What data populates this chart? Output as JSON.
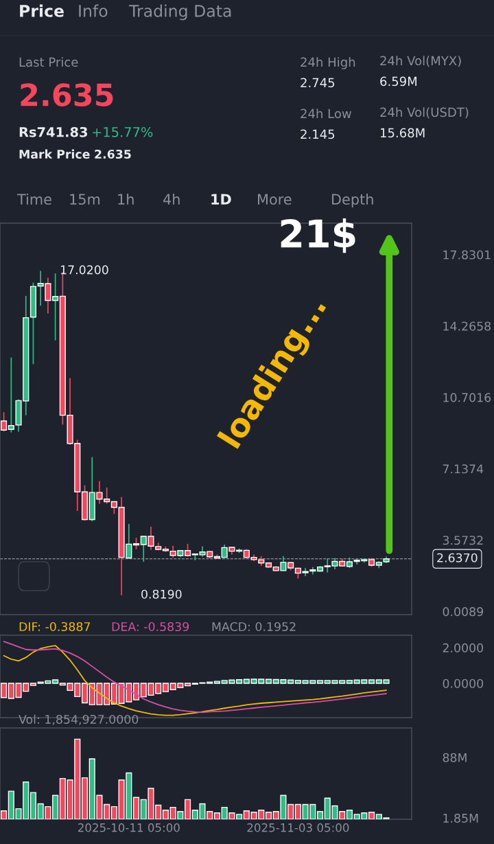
{
  "chart_data": [
    {
      "type": "other",
      "annotations": [
        "Price",
        "Info",
        "Trading Data",
        "Last Price",
        "2.635",
        "Rs741.83",
        "+15.77%",
        "Mark Price",
        "2.635",
        "24h High",
        "2.745",
        "24h Low",
        "2.145",
        "24h Vol(MYX)",
        "6.59M",
        "24h Vol(USDT)",
        "15.68M",
        "Time",
        "15m",
        "1h",
        "4h",
        "1D",
        "More",
        "Depth"
      ]
    },
    {
      "type": "candlestick",
      "categories": [
        null,
        null,
        null,
        null,
        null,
        null,
        null,
        null,
        null,
        null,
        null,
        null,
        null,
        null,
        null,
        null,
        null,
        "2025-10-11 05:00",
        null,
        null,
        null,
        null,
        null,
        null,
        null,
        null,
        null,
        null,
        null,
        null,
        null,
        null,
        null,
        null,
        null,
        null,
        null,
        null,
        null,
        null,
        "2025-11-03 05:00",
        null,
        null,
        null,
        null,
        null,
        null,
        null,
        null,
        null,
        null,
        null,
        null
      ],
      "ohlc": [
        [
          9.52,
          9.96,
          8.99,
          9.07
        ],
        [
          9.1,
          12.69,
          8.95,
          9.29
        ],
        [
          9.32,
          10.6,
          8.99,
          10.54
        ],
        [
          10.52,
          15.77,
          9.81,
          14.68
        ],
        [
          14.71,
          16.43,
          12.36,
          16.24
        ],
        [
          16.26,
          17.02,
          15.28,
          16.39
        ],
        [
          16.38,
          16.67,
          14.89,
          15.54
        ],
        [
          15.54,
          16.89,
          13.55,
          15.74
        ],
        [
          15.75,
          16.95,
          9.34,
          9.81
        ],
        [
          9.81,
          11.67,
          8.33,
          8.4
        ],
        [
          8.4,
          8.58,
          5.03,
          5.98
        ],
        [
          5.98,
          6.31,
          4.54,
          4.6
        ],
        [
          4.6,
          7.72,
          4.51,
          5.95
        ],
        [
          5.95,
          6.52,
          5.39,
          5.62
        ],
        [
          5.62,
          6.2,
          5.39,
          5.49
        ],
        [
          5.49,
          5.5,
          4.88,
          5.21
        ],
        [
          5.21,
          5.72,
          0.819,
          2.71
        ],
        [
          2.68,
          4.38,
          2.64,
          3.37
        ],
        [
          3.39,
          3.69,
          3.12,
          3.33
        ],
        [
          3.35,
          3.78,
          2.49,
          3.76
        ],
        [
          3.76,
          4.24,
          3.09,
          3.27
        ],
        [
          3.25,
          3.44,
          3.06,
          3.11
        ],
        [
          3.12,
          3.25,
          2.98,
          3.05
        ],
        [
          3.02,
          3.29,
          2.7,
          2.81
        ],
        [
          2.8,
          3.06,
          2.72,
          3.05
        ],
        [
          3.05,
          3.38,
          2.75,
          2.8
        ],
        [
          2.84,
          2.88,
          2.57,
          2.88
        ],
        [
          2.84,
          3.26,
          2.74,
          2.98
        ],
        [
          3.0,
          3.03,
          2.66,
          2.74
        ],
        [
          2.75,
          2.85,
          2.63,
          2.68
        ],
        [
          2.71,
          3.35,
          2.71,
          3.2
        ],
        [
          3.21,
          3.24,
          2.85,
          3.02
        ],
        [
          3.02,
          3.15,
          2.93,
          3.07
        ],
        [
          3.06,
          3.12,
          2.64,
          2.71
        ],
        [
          2.71,
          2.85,
          2.52,
          2.6
        ],
        [
          2.59,
          2.77,
          2.29,
          2.43
        ],
        [
          2.43,
          2.46,
          2.18,
          2.23
        ],
        [
          2.23,
          2.27,
          2.01,
          2.05
        ],
        [
          2.05,
          2.77,
          2.03,
          2.46
        ],
        [
          2.45,
          2.47,
          2.06,
          2.18
        ],
        [
          2.17,
          2.2,
          1.65,
          1.92
        ],
        [
          1.94,
          2.18,
          1.77,
          2.0
        ],
        [
          2.03,
          2.23,
          1.86,
          2.09
        ],
        [
          2.03,
          2.28,
          1.99,
          2.23
        ],
        [
          2.24,
          2.66,
          1.95,
          2.29
        ],
        [
          2.28,
          2.68,
          2.11,
          2.51
        ],
        [
          2.51,
          2.64,
          2.28,
          2.28
        ],
        [
          2.26,
          2.7,
          2.18,
          2.49
        ],
        [
          2.51,
          2.61,
          2.35,
          2.57
        ],
        [
          2.54,
          2.66,
          2.45,
          2.6
        ],
        [
          2.6,
          2.68,
          2.24,
          2.32
        ],
        [
          2.32,
          2.52,
          2.17,
          2.46
        ],
        [
          2.49,
          2.745,
          2.42,
          2.637
        ]
      ],
      "colors": [
        "#f6465d",
        "#2ebd85",
        "#2ebd85",
        "#2ebd85",
        "#2ebd85",
        "#2ebd85",
        "#f6465d",
        "#2ebd85",
        "#f6465d",
        "#f6465d",
        "#f6465d",
        "#f6465d",
        "#2ebd85",
        "#f6465d",
        "#f6465d",
        "#f6465d",
        "#f6465d",
        "#2ebd85",
        "#f6465d",
        "#2ebd85",
        "#f6465d",
        "#f6465d",
        "#f6465d",
        "#f6465d",
        "#2ebd85",
        "#f6465d",
        "#2ebd85",
        "#2ebd85",
        "#f6465d",
        "#f6465d",
        "#2ebd85",
        "#f6465d",
        "#2ebd85",
        "#f6465d",
        "#f6465d",
        "#f6465d",
        "#f6465d",
        "#f6465d",
        "#2ebd85",
        "#f6465d",
        "#f6465d",
        "#2ebd85",
        "#2ebd85",
        "#2ebd85",
        "#2ebd85",
        "#2ebd85",
        "#f6465d",
        "#2ebd85",
        "#2ebd85",
        "#2ebd85",
        "#f6465d",
        "#2ebd85",
        "#2ebd85"
      ],
      "ylim": [
        -0.15,
        19.4
      ],
      "yticks": [
        0.0089,
        3.5732,
        7.1374,
        10.7016,
        14.2658,
        17.8301
      ],
      "tick_labels": "y",
      "ref_lines": [
        {
          "axis": "y",
          "value": 2.637,
          "label": "2.6370",
          "line_style": "dashed"
        }
      ],
      "annotations": [
        "17.0200",
        "0.8190",
        "21$",
        "loading..."
      ]
    },
    {
      "type": "bar",
      "categories": [
        null,
        null,
        null,
        null,
        null,
        null,
        null,
        null,
        null,
        null,
        null,
        null,
        null,
        null,
        null,
        null,
        null,
        "2025-10-11 05:00",
        null,
        null,
        null,
        null,
        null,
        null,
        null,
        null,
        null,
        null,
        null,
        null,
        null,
        null,
        null,
        null,
        null,
        null,
        null,
        null,
        null,
        null,
        "2025-11-03 05:00",
        null,
        null,
        null,
        null,
        null,
        null,
        null,
        null,
        null,
        null,
        null,
        null
      ],
      "series": [
        {
          "type": "bar",
          "colors": [
            "#f6465d",
            "#f6465d",
            "#f6465d",
            "#f6465d",
            "#f6465d",
            "#2ebd85",
            "#2ebd85",
            "#2ebd85",
            "#f6465d",
            "#f6465d",
            "#f6465d",
            "#f6465d",
            "#f6465d",
            "#f6465d",
            "#f6465d",
            "#f6465d",
            "#f6465d",
            "#f6465d",
            "#f6465d",
            "#f6465d",
            "#f6465d",
            "#f6465d",
            "#f6465d",
            "#f6465d",
            "#f6465d",
            "#f6465d",
            "#f6465d",
            "#2ebd85",
            "#2ebd85",
            "#2ebd85",
            "#2ebd85",
            "#2ebd85",
            "#2ebd85",
            "#2ebd85",
            "#2ebd85",
            "#2ebd85",
            "#2ebd85",
            "#2ebd85",
            "#2ebd85",
            "#2ebd85",
            "#2ebd85",
            "#2ebd85",
            "#2ebd85",
            "#2ebd85",
            "#2ebd85",
            "#2ebd85",
            "#2ebd85",
            "#2ebd85",
            "#2ebd85",
            "#2ebd85",
            "#2ebd85",
            "#2ebd85",
            "#2ebd85"
          ],
          "values": [
            -0.8,
            -0.85,
            -0.79,
            -0.45,
            -0.12,
            0.07,
            0.14,
            0.19,
            -0.1,
            -0.4,
            -0.75,
            -1.1,
            -1.2,
            -1.2,
            -1.2,
            -1.17,
            -1.13,
            -1.04,
            -0.93,
            -0.76,
            -0.67,
            -0.57,
            -0.47,
            -0.36,
            -0.24,
            -0.14,
            -0.05,
            0.03,
            0.07,
            0.11,
            0.16,
            0.18,
            0.2,
            0.22,
            0.23,
            0.23,
            0.22,
            0.21,
            0.2,
            0.18,
            0.17,
            0.16,
            0.16,
            0.16,
            0.16,
            0.16,
            0.16,
            0.17,
            0.18,
            0.19,
            0.19,
            0.19,
            0.19
          ]
        },
        {
          "type": "line",
          "name": "DIF: -0.3887",
          "color": "#f0b90b",
          "values": [
            1.55,
            1.35,
            1.26,
            1.45,
            1.75,
            1.95,
            2.05,
            2.12,
            1.75,
            1.3,
            0.75,
            0.15,
            -0.25,
            -0.55,
            -0.85,
            -1.1,
            -1.28,
            -1.42,
            -1.55,
            -1.64,
            -1.72,
            -1.77,
            -1.8,
            -1.8,
            -1.76,
            -1.71,
            -1.66,
            -1.6,
            -1.53,
            -1.47,
            -1.4,
            -1.34,
            -1.28,
            -1.21,
            -1.16,
            -1.12,
            -1.09,
            -1.06,
            -1.03,
            -1.0,
            -0.97,
            -0.94,
            -0.91,
            -0.87,
            -0.82,
            -0.77,
            -0.72,
            -0.66,
            -0.6,
            -0.54,
            -0.49,
            -0.44,
            -0.39
          ]
        },
        {
          "type": "line",
          "name": "DEA: -0.5839",
          "color": "#d84fa8",
          "values": [
            2.35,
            2.2,
            2.05,
            1.9,
            1.87,
            1.88,
            1.91,
            1.93,
            1.85,
            1.7,
            1.5,
            1.25,
            0.95,
            0.65,
            0.35,
            0.07,
            -0.15,
            -0.38,
            -0.62,
            -0.88,
            -1.05,
            -1.2,
            -1.33,
            -1.44,
            -1.52,
            -1.57,
            -1.61,
            -1.63,
            -1.6,
            -1.58,
            -1.56,
            -1.52,
            -1.48,
            -1.43,
            -1.39,
            -1.35,
            -1.31,
            -1.27,
            -1.23,
            -1.18,
            -1.14,
            -1.1,
            -1.07,
            -1.03,
            -0.98,
            -0.93,
            -0.88,
            -0.83,
            -0.78,
            -0.73,
            -0.68,
            -0.63,
            -0.58
          ]
        }
      ],
      "legend": "top left",
      "ylim": [
        -1.93,
        2.7
      ],
      "yticks": [
        {
          "value": 2,
          "label": "2.0000"
        },
        {
          "value": 0,
          "label": "0.0000"
        }
      ],
      "tick_labels": "y",
      "annotations": [
        "MACD: 0.1952"
      ]
    },
    {
      "type": "bar",
      "categories": [
        null,
        null,
        null,
        null,
        null,
        null,
        null,
        null,
        null,
        null,
        null,
        null,
        null,
        null,
        null,
        null,
        null,
        "2025-10-11 05:00",
        null,
        null,
        null,
        null,
        null,
        null,
        null,
        null,
        null,
        null,
        null,
        null,
        null,
        null,
        null,
        null,
        null,
        null,
        null,
        null,
        null,
        null,
        "2025-11-03 05:00",
        null,
        null,
        null,
        null,
        null,
        null,
        null,
        null,
        null,
        null,
        null,
        null
      ],
      "values": [
        12,
        40,
        15,
        53,
        38,
        22,
        18,
        34,
        58,
        56,
        114,
        59,
        86,
        34,
        21,
        18,
        56,
        66,
        31,
        28,
        44,
        20,
        13,
        17,
        11,
        28,
        13,
        22,
        11,
        9,
        17,
        9,
        7,
        12,
        10,
        13,
        10,
        11,
        34,
        21,
        21,
        21,
        21,
        11,
        30,
        19,
        11,
        13,
        7,
        9,
        10,
        7,
        2
      ],
      "colors": [
        "#f6465d",
        "#2ebd85",
        "#2ebd85",
        "#2ebd85",
        "#2ebd85",
        "#2ebd85",
        "#f6465d",
        "#2ebd85",
        "#f6465d",
        "#f6465d",
        "#f6465d",
        "#f6465d",
        "#2ebd85",
        "#f6465d",
        "#f6465d",
        "#f6465d",
        "#f6465d",
        "#2ebd85",
        "#f6465d",
        "#2ebd85",
        "#f6465d",
        "#f6465d",
        "#f6465d",
        "#f6465d",
        "#2ebd85",
        "#f6465d",
        "#2ebd85",
        "#2ebd85",
        "#f6465d",
        "#f6465d",
        "#2ebd85",
        "#f6465d",
        "#2ebd85",
        "#f6465d",
        "#f6465d",
        "#f6465d",
        "#f6465d",
        "#f6465d",
        "#2ebd85",
        "#f6465d",
        "#f6465d",
        "#2ebd85",
        "#2ebd85",
        "#2ebd85",
        "#2ebd85",
        "#2ebd85",
        "#f6465d",
        "#2ebd85",
        "#2ebd85",
        "#2ebd85",
        "#f6465d",
        "#2ebd85",
        "#2ebd85"
      ],
      "ylim": [
        0,
        130
      ],
      "yticks": [
        {
          "value": 1.85,
          "label": "1.85M"
        },
        {
          "value": 88,
          "label": "88M"
        }
      ],
      "annotations": [
        "Vol: 1,854,927.0000"
      ]
    }
  ]
}
